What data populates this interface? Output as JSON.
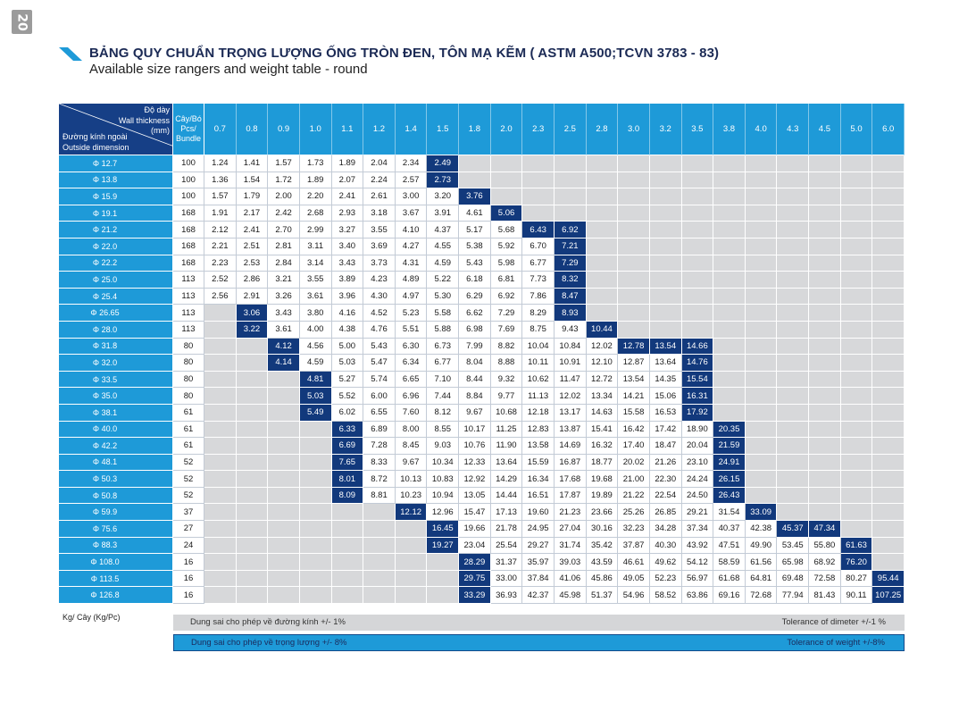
{
  "page_number": "20",
  "title": "BẢNG QUY CHUẨN TRỌNG LƯỢNG ỐNG TRÒN ĐEN, TÔN MẠ KẼM ( ASTM A500;TCVN 3783 - 83)",
  "subtitle": "Available size rangers and weight table - round",
  "colors": {
    "header_blue": "#1e9ad8",
    "highlight_navy": "#12397c",
    "empty_gray": "#d7d8da",
    "title_navy": "#1b2a55"
  },
  "table": {
    "corner": {
      "thickness_vi": "Độ dày",
      "thickness_en": "Wall thickness",
      "thickness_unit": "(mm)",
      "diameter_vi": "Đường kính ngoài",
      "diameter_en": "Outside dimension"
    },
    "bundle_header": [
      "Cây/Bó",
      "Pcs/",
      "Bundle"
    ],
    "thicknesses": [
      "0.7",
      "0.8",
      "0.9",
      "1.0",
      "1.1",
      "1.2",
      "1.4",
      "1.5",
      "1.8",
      "2.0",
      "2.3",
      "2.5",
      "2.8",
      "3.0",
      "3.2",
      "3.5",
      "3.8",
      "4.0",
      "4.3",
      "4.5",
      "5.0",
      "6.0"
    ],
    "rows": [
      {
        "diameter": "Φ 12.7",
        "bundle": "100",
        "weights": [
          "1.24",
          "1.41",
          "1.57",
          "1.73",
          "1.89",
          "2.04",
          "2.34",
          "2.49",
          null,
          null,
          null,
          null,
          null,
          null,
          null,
          null,
          null,
          null,
          null,
          null,
          null,
          null
        ]
      },
      {
        "diameter": "Φ 13.8",
        "bundle": "100",
        "weights": [
          "1.36",
          "1.54",
          "1.72",
          "1.89",
          "2.07",
          "2.24",
          "2.57",
          "2.73",
          null,
          null,
          null,
          null,
          null,
          null,
          null,
          null,
          null,
          null,
          null,
          null,
          null,
          null
        ]
      },
      {
        "diameter": "Φ 15.9",
        "bundle": "100",
        "weights": [
          "1.57",
          "1.79",
          "2.00",
          "2.20",
          "2.41",
          "2.61",
          "3.00",
          "3.20",
          "3.76",
          null,
          null,
          null,
          null,
          null,
          null,
          null,
          null,
          null,
          null,
          null,
          null,
          null
        ]
      },
      {
        "diameter": "Φ 19.1",
        "bundle": "168",
        "weights": [
          "1.91",
          "2.17",
          "2.42",
          "2.68",
          "2.93",
          "3.18",
          "3.67",
          "3.91",
          "4.61",
          "5.06",
          null,
          null,
          null,
          null,
          null,
          null,
          null,
          null,
          null,
          null,
          null,
          null
        ]
      },
      {
        "diameter": "Φ 21.2",
        "bundle": "168",
        "weights": [
          "2.12",
          "2.41",
          "2.70",
          "2.99",
          "3.27",
          "3.55",
          "4.10",
          "4.37",
          "5.17",
          "5.68",
          "6.43",
          "6.92",
          null,
          null,
          null,
          null,
          null,
          null,
          null,
          null,
          null,
          null
        ]
      },
      {
        "diameter": "Φ 22.0",
        "bundle": "168",
        "weights": [
          "2.21",
          "2.51",
          "2.81",
          "3.11",
          "3.40",
          "3.69",
          "4.27",
          "4.55",
          "5.38",
          "5.92",
          "6.70",
          "7.21",
          null,
          null,
          null,
          null,
          null,
          null,
          null,
          null,
          null,
          null
        ]
      },
      {
        "diameter": "Φ 22.2",
        "bundle": "168",
        "weights": [
          "2.23",
          "2.53",
          "2.84",
          "3.14",
          "3.43",
          "3.73",
          "4.31",
          "4.59",
          "5.43",
          "5.98",
          "6.77",
          "7.29",
          null,
          null,
          null,
          null,
          null,
          null,
          null,
          null,
          null,
          null
        ]
      },
      {
        "diameter": "Φ 25.0",
        "bundle": "113",
        "weights": [
          "2.52",
          "2.86",
          "3.21",
          "3.55",
          "3.89",
          "4.23",
          "4.89",
          "5.22",
          "6.18",
          "6.81",
          "7.73",
          "8.32",
          null,
          null,
          null,
          null,
          null,
          null,
          null,
          null,
          null,
          null
        ]
      },
      {
        "diameter": "Φ 25.4",
        "bundle": "113",
        "weights": [
          "2.56",
          "2.91",
          "3.26",
          "3.61",
          "3.96",
          "4.30",
          "4.97",
          "5.30",
          "6.29",
          "6.92",
          "7.86",
          "8.47",
          null,
          null,
          null,
          null,
          null,
          null,
          null,
          null,
          null,
          null
        ]
      },
      {
        "diameter": "Φ 26.65",
        "bundle": "113",
        "weights": [
          null,
          "3.06",
          "3.43",
          "3.80",
          "4.16",
          "4.52",
          "5.23",
          "5.58",
          "6.62",
          "7.29",
          "8.29",
          "8.93",
          null,
          null,
          null,
          null,
          null,
          null,
          null,
          null,
          null,
          null
        ]
      },
      {
        "diameter": "Φ 28.0",
        "bundle": "113",
        "weights": [
          null,
          "3.22",
          "3.61",
          "4.00",
          "4.38",
          "4.76",
          "5.51",
          "5.88",
          "6.98",
          "7.69",
          "8.75",
          "9.43",
          "10.44",
          null,
          null,
          null,
          null,
          null,
          null,
          null,
          null,
          null
        ]
      },
      {
        "diameter": "Φ 31.8",
        "bundle": "80",
        "weights": [
          null,
          null,
          "4.12",
          "4.56",
          "5.00",
          "5.43",
          "6.30",
          "6.73",
          "7.99",
          "8.82",
          "10.04",
          "10.84",
          "12.02",
          "12.78",
          "13.54",
          "14.66",
          null,
          null,
          null,
          null,
          null,
          null
        ]
      },
      {
        "diameter": "Φ 32.0",
        "bundle": "80",
        "weights": [
          null,
          null,
          "4.14",
          "4.59",
          "5.03",
          "5.47",
          "6.34",
          "6.77",
          "8.04",
          "8.88",
          "10.11",
          "10.91",
          "12.10",
          "12.87",
          "13.64",
          "14.76",
          null,
          null,
          null,
          null,
          null,
          null
        ]
      },
      {
        "diameter": "Φ 33.5",
        "bundle": "80",
        "weights": [
          null,
          null,
          null,
          "4.81",
          "5.27",
          "5.74",
          "6.65",
          "7.10",
          "8.44",
          "9.32",
          "10.62",
          "11.47",
          "12.72",
          "13.54",
          "14.35",
          "15.54",
          null,
          null,
          null,
          null,
          null,
          null
        ]
      },
      {
        "diameter": "Φ 35.0",
        "bundle": "80",
        "weights": [
          null,
          null,
          null,
          "5.03",
          "5.52",
          "6.00",
          "6.96",
          "7.44",
          "8.84",
          "9.77",
          "11.13",
          "12.02",
          "13.34",
          "14.21",
          "15.06",
          "16.31",
          null,
          null,
          null,
          null,
          null,
          null
        ]
      },
      {
        "diameter": "Φ 38.1",
        "bundle": "61",
        "weights": [
          null,
          null,
          null,
          "5.49",
          "6.02",
          "6.55",
          "7.60",
          "8.12",
          "9.67",
          "10.68",
          "12.18",
          "13.17",
          "14.63",
          "15.58",
          "16.53",
          "17.92",
          null,
          null,
          null,
          null,
          null,
          null
        ]
      },
      {
        "diameter": "Φ 40.0",
        "bundle": "61",
        "weights": [
          null,
          null,
          null,
          null,
          "6.33",
          "6.89",
          "8.00",
          "8.55",
          "10.17",
          "11.25",
          "12.83",
          "13.87",
          "15.41",
          "16.42",
          "17.42",
          "18.90",
          "20.35",
          null,
          null,
          null,
          null,
          null
        ]
      },
      {
        "diameter": "Φ 42.2",
        "bundle": "61",
        "weights": [
          null,
          null,
          null,
          null,
          "6.69",
          "7.28",
          "8.45",
          "9.03",
          "10.76",
          "11.90",
          "13.58",
          "14.69",
          "16.32",
          "17.40",
          "18.47",
          "20.04",
          "21.59",
          null,
          null,
          null,
          null,
          null
        ]
      },
      {
        "diameter": "Φ 48.1",
        "bundle": "52",
        "weights": [
          null,
          null,
          null,
          null,
          "7.65",
          "8.33",
          "9.67",
          "10.34",
          "12.33",
          "13.64",
          "15.59",
          "16.87",
          "18.77",
          "20.02",
          "21.26",
          "23.10",
          "24.91",
          null,
          null,
          null,
          null,
          null
        ]
      },
      {
        "diameter": "Φ 50.3",
        "bundle": "52",
        "weights": [
          null,
          null,
          null,
          null,
          "8.01",
          "8.72",
          "10.13",
          "10.83",
          "12.92",
          "14.29",
          "16.34",
          "17.68",
          "19.68",
          "21.00",
          "22.30",
          "24.24",
          "26.15",
          null,
          null,
          null,
          null,
          null
        ]
      },
      {
        "diameter": "Φ 50.8",
        "bundle": "52",
        "weights": [
          null,
          null,
          null,
          null,
          "8.09",
          "8.81",
          "10.23",
          "10.94",
          "13.05",
          "14.44",
          "16.51",
          "17.87",
          "19.89",
          "21.22",
          "22.54",
          "24.50",
          "26.43",
          null,
          null,
          null,
          null,
          null
        ]
      },
      {
        "diameter": "Φ 59.9",
        "bundle": "37",
        "weights": [
          null,
          null,
          null,
          null,
          null,
          null,
          "12.12",
          "12.96",
          "15.47",
          "17.13",
          "19.60",
          "21.23",
          "23.66",
          "25.26",
          "26.85",
          "29.21",
          "31.54",
          "33.09",
          null,
          null,
          null,
          null
        ]
      },
      {
        "diameter": "Φ 75.6",
        "bundle": "27",
        "weights": [
          null,
          null,
          null,
          null,
          null,
          null,
          null,
          "16.45",
          "19.66",
          "21.78",
          "24.95",
          "27.04",
          "30.16",
          "32.23",
          "34.28",
          "37.34",
          "40.37",
          "42.38",
          "45.37",
          "47.34",
          null,
          null
        ]
      },
      {
        "diameter": "Φ 88.3",
        "bundle": "24",
        "weights": [
          null,
          null,
          null,
          null,
          null,
          null,
          null,
          "19.27",
          "23.04",
          "25.54",
          "29.27",
          "31.74",
          "35.42",
          "37.87",
          "40.30",
          "43.92",
          "47.51",
          "49.90",
          "53.45",
          "55.80",
          "61.63",
          null
        ]
      },
      {
        "diameter": "Φ 108.0",
        "bundle": "16",
        "weights": [
          null,
          null,
          null,
          null,
          null,
          null,
          null,
          null,
          "28.29",
          "31.37",
          "35.97",
          "39.03",
          "43.59",
          "46.61",
          "49.62",
          "54.12",
          "58.59",
          "61.56",
          "65.98",
          "68.92",
          "76.20",
          null
        ]
      },
      {
        "diameter": "Φ 113.5",
        "bundle": "16",
        "weights": [
          null,
          null,
          null,
          null,
          null,
          null,
          null,
          null,
          "29.75",
          "33.00",
          "37.84",
          "41.06",
          "45.86",
          "49.05",
          "52.23",
          "56.97",
          "61.68",
          "64.81",
          "69.48",
          "72.58",
          "80.27",
          "95.44"
        ]
      },
      {
        "diameter": "Φ 126.8",
        "bundle": "16",
        "weights": [
          null,
          null,
          null,
          null,
          null,
          null,
          null,
          null,
          "33.29",
          "36.93",
          "42.37",
          "45.98",
          "51.37",
          "54.96",
          "58.52",
          "63.86",
          "69.16",
          "72.68",
          "77.94",
          "81.43",
          "90.11",
          "107.25"
        ]
      }
    ]
  },
  "unit_note": "Kg/ Cây (Kg/Pc)",
  "tolerances": [
    {
      "vi": "Dung sai cho phép về đường kính +/- 1%",
      "en": "Tolerance of dimeter +/-1 %"
    },
    {
      "vi": "Dung sai cho phép về trọng lượng +/- 8%",
      "en": "Tolerance of weight +/-8%"
    }
  ]
}
